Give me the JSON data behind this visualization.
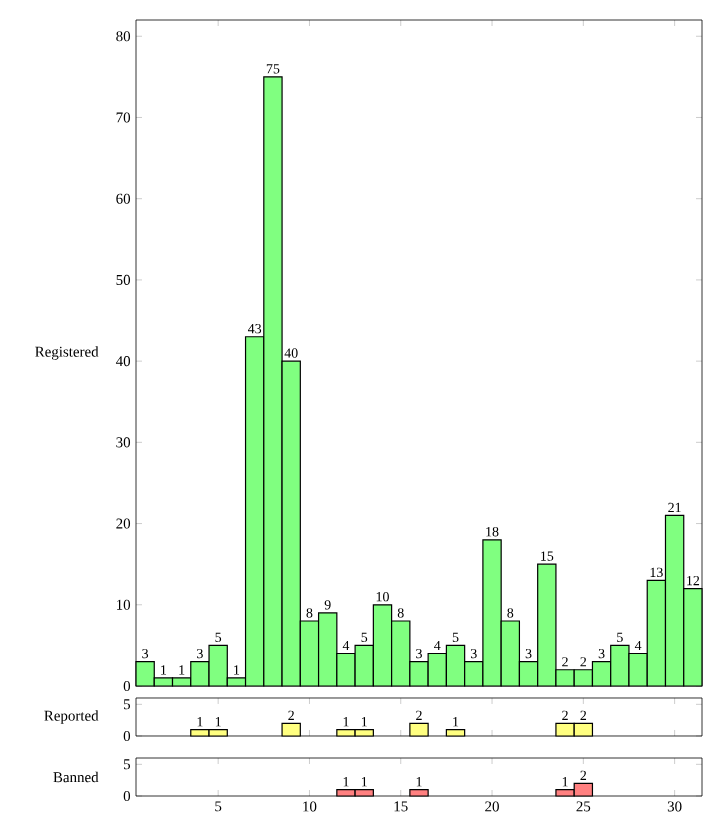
{
  "chart_data": [
    {
      "type": "bar",
      "ylabel": "Registered",
      "x": [
        1,
        2,
        3,
        4,
        5,
        6,
        7,
        8,
        9,
        10,
        11,
        12,
        13,
        14,
        15,
        16,
        17,
        18,
        19,
        20,
        21,
        22,
        23,
        24,
        25,
        26,
        27,
        28,
        29,
        30,
        31
      ],
      "values": [
        3,
        1,
        1,
        3,
        5,
        1,
        43,
        75,
        40,
        8,
        9,
        4,
        5,
        10,
        8,
        3,
        4,
        5,
        3,
        18,
        8,
        3,
        15,
        2,
        2,
        3,
        5,
        4,
        13,
        21,
        12
      ],
      "color": "#80ff80",
      "xlim": [
        0.5,
        31.5
      ],
      "xticks": [
        5,
        10,
        15,
        20,
        25,
        30
      ],
      "ylim": [
        0,
        82
      ],
      "yticks": [
        0,
        10,
        20,
        30,
        40,
        50,
        60,
        70,
        80
      ],
      "data_labels": true,
      "tick_labels": "y"
    },
    {
      "type": "bar",
      "ylabel": "Reported",
      "x": [
        4,
        5,
        9,
        12,
        13,
        16,
        18,
        24,
        25
      ],
      "values": [
        1,
        1,
        2,
        1,
        1,
        2,
        1,
        2,
        2
      ],
      "color": "#ffff80",
      "xlim": [
        0.5,
        31.5
      ],
      "xticks": [
        5,
        10,
        15,
        20,
        25,
        30
      ],
      "ylim": [
        0,
        6
      ],
      "yticks": [
        0,
        5
      ],
      "data_labels": true,
      "tick_labels": "y"
    },
    {
      "type": "bar",
      "ylabel": "Banned",
      "x": [
        12,
        13,
        16,
        24,
        25
      ],
      "values": [
        1,
        1,
        1,
        1,
        2
      ],
      "color": "#ff8080",
      "xlim": [
        0.5,
        31.5
      ],
      "xticks": [
        5,
        10,
        15,
        20,
        25,
        30
      ],
      "ylim": [
        0,
        6
      ],
      "yticks": [
        0,
        5
      ],
      "data_labels": true
    }
  ]
}
